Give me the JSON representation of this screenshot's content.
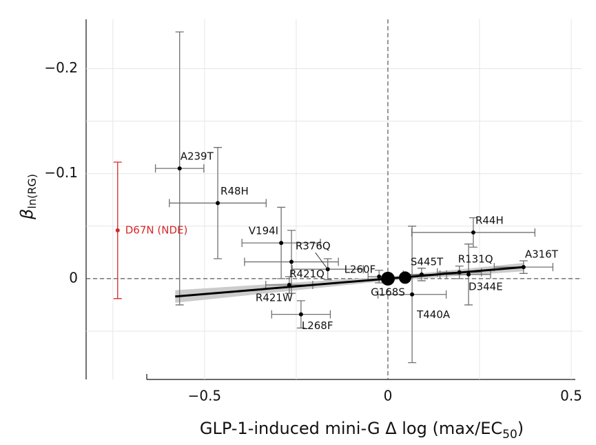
{
  "chart_data": {
    "type": "scatter",
    "x_label": [
      "GLP-1-induced mini-G Δ log (max/EC",
      "50",
      ")"
    ],
    "y_label": {
      "main": "β",
      "sub": "ln(RG)"
    },
    "xlim": [
      -0.823,
      0.53
    ],
    "ylim": [
      0.096,
      -0.247
    ],
    "xticks": [
      {
        "value": -0.5,
        "label": "−0.5"
      },
      0,
      0.5
    ],
    "yticks": [
      {
        "value": -0.2,
        "label": "−0.2"
      },
      {
        "value": -0.1,
        "label": "−0.1"
      },
      0
    ],
    "minor_grid": {
      "x": [
        -0.75,
        -0.25,
        0.25
      ],
      "y": [
        -0.15,
        -0.05,
        0.05
      ]
    },
    "grid": true,
    "color": "#000000",
    "errorbar_color": "#707070",
    "points": [
      {
        "name": "A239T",
        "x": -0.568,
        "y": -0.105,
        "xerr": 0.066,
        "yerr": 0.13
      },
      {
        "name": "R48H",
        "x": -0.464,
        "y": -0.072,
        "xerr": 0.132,
        "yerr": 0.053
      },
      {
        "name": "V194I",
        "x": -0.291,
        "y": -0.034,
        "xerr": 0.107,
        "yerr": 0.034
      },
      {
        "name": "R376Q",
        "x": -0.164,
        "y": -0.009,
        "xerr": 0.097,
        "yerr": 0.01
      },
      {
        "name": "R421Q",
        "x": -0.263,
        "y": -0.016,
        "xerr": 0.128,
        "yerr": 0.03
      },
      {
        "name": "L260F",
        "x": -0.024,
        "y": -0.002,
        "xerr": 0.03,
        "yerr": 0.006
      },
      {
        "name": "R421W",
        "x": -0.269,
        "y": 0.006,
        "xerr": 0.064,
        "yerr": 0.008
      },
      {
        "name": "L268F",
        "x": -0.237,
        "y": 0.034,
        "xerr": 0.08,
        "yerr": 0.013
      },
      {
        "name": "G168S",
        "x": 0,
        "y": 0,
        "xerr": null,
        "yerr": null,
        "size": 10
      },
      {
        "name": null,
        "x": 0.047,
        "y": -0.001,
        "xerr": null,
        "yerr": null,
        "size": 9
      },
      {
        "name": "S445T",
        "x": 0.092,
        "y": -0.004,
        "xerr": 0.05,
        "yerr": 0.006
      },
      {
        "name": "T440A",
        "x": 0.066,
        "y": 0.015,
        "xerr": 0.093,
        "yerr": 0.065
      },
      {
        "name": "R44H",
        "x": 0.233,
        "y": -0.044,
        "xerr": 0.168,
        "yerr": 0.014
      },
      {
        "name": "R131Q",
        "x": 0.195,
        "y": -0.006,
        "xerr": 0.06,
        "yerr": 0.006
      },
      {
        "name": "D344E",
        "x": 0.22,
        "y": -0.004,
        "xerr": 0.06,
        "yerr": 0.029
      },
      {
        "name": "A316T",
        "x": 0.37,
        "y": -0.011,
        "xerr": 0.08,
        "yerr": 0.006
      },
      {
        "name": "D67N (NDE)",
        "x": -0.737,
        "y": -0.046,
        "xerr": null,
        "yerr": 0.065,
        "color": "#d62728"
      }
    ],
    "fit": {
      "x": [
        -0.58,
        0,
        0.37
      ],
      "y": [
        0.017,
        0.0,
        -0.011
      ],
      "lower": [
        0.011,
        -0.002,
        -0.015
      ],
      "upper": [
        0.023,
        0.002,
        -0.007
      ],
      "color": "#000000",
      "band_color": "#cccccc"
    }
  }
}
